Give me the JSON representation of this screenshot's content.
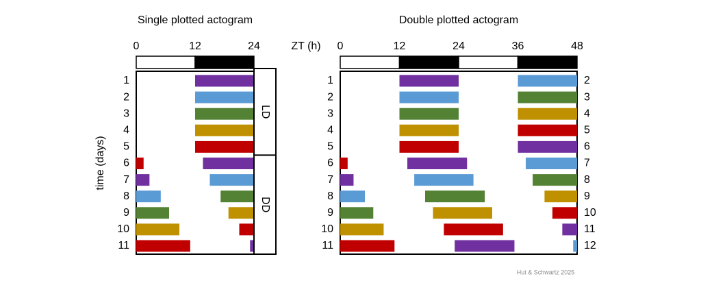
{
  "chart_data": [
    {
      "type": "actogram",
      "title": "Single plotted actogram",
      "y_label": "time (days)",
      "xlim": [
        0,
        24
      ],
      "xticks": [
        0,
        12,
        24
      ],
      "light_dark": [
        {
          "start": 0,
          "end": 12,
          "color": "#ffffff"
        },
        {
          "start": 12,
          "end": 24,
          "color": "#000000"
        }
      ],
      "categories": [
        "1",
        "2",
        "3",
        "4",
        "5",
        "6",
        "7",
        "8",
        "9",
        "10",
        "11"
      ],
      "rows": [
        {
          "bars": [
            {
              "start": 12,
              "end": 24,
              "color": "#7030a0"
            }
          ]
        },
        {
          "bars": [
            {
              "start": 12,
              "end": 24,
              "color": "#5b9bd5"
            }
          ]
        },
        {
          "bars": [
            {
              "start": 12,
              "end": 24,
              "color": "#548235"
            }
          ]
        },
        {
          "bars": [
            {
              "start": 12,
              "end": 24,
              "color": "#bf9000"
            }
          ]
        },
        {
          "bars": [
            {
              "start": 12,
              "end": 24,
              "color": "#c00000"
            }
          ]
        },
        {
          "bars": [
            {
              "start": 0,
              "end": 1.5,
              "color": "#c00000"
            },
            {
              "start": 13.6,
              "end": 24,
              "color": "#7030a0"
            }
          ]
        },
        {
          "bars": [
            {
              "start": 0,
              "end": 2.7,
              "color": "#7030a0"
            },
            {
              "start": 15,
              "end": 24,
              "color": "#5b9bd5"
            }
          ]
        },
        {
          "bars": [
            {
              "start": 0,
              "end": 5,
              "color": "#5b9bd5"
            },
            {
              "start": 17.2,
              "end": 24,
              "color": "#548235"
            }
          ]
        },
        {
          "bars": [
            {
              "start": 0,
              "end": 6.7,
              "color": "#548235"
            },
            {
              "start": 18.8,
              "end": 24,
              "color": "#bf9000"
            }
          ]
        },
        {
          "bars": [
            {
              "start": 0,
              "end": 8.8,
              "color": "#bf9000"
            },
            {
              "start": 21,
              "end": 24,
              "color": "#c00000"
            }
          ]
        },
        {
          "bars": [
            {
              "start": 0,
              "end": 11,
              "color": "#c00000"
            },
            {
              "start": 23.2,
              "end": 24,
              "color": "#7030a0"
            }
          ]
        }
      ],
      "conditions": [
        {
          "label": "LD",
          "first_day": 1,
          "last_day": 5
        },
        {
          "label": "DD",
          "first_day": 6,
          "last_day": 11
        }
      ]
    },
    {
      "type": "actogram",
      "title": "Double plotted actogram",
      "x_label": "ZT (h)",
      "xlim": [
        0,
        48
      ],
      "xticks": [
        0,
        12,
        24,
        36,
        48
      ],
      "light_dark": [
        {
          "start": 0,
          "end": 12,
          "color": "#ffffff"
        },
        {
          "start": 12,
          "end": 24,
          "color": "#000000"
        },
        {
          "start": 24,
          "end": 36,
          "color": "#ffffff"
        },
        {
          "start": 36,
          "end": 48,
          "color": "#000000"
        }
      ],
      "categories": [
        "1",
        "2",
        "3",
        "4",
        "5",
        "6",
        "7",
        "8",
        "9",
        "10",
        "11"
      ],
      "categories_right": [
        "2",
        "3",
        "4",
        "5",
        "6",
        "7",
        "8",
        "9",
        "10",
        "11",
        "12"
      ],
      "rows": [
        {
          "bars": [
            {
              "start": 12,
              "end": 24,
              "color": "#7030a0"
            },
            {
              "start": 36,
              "end": 48,
              "color": "#5b9bd5"
            }
          ]
        },
        {
          "bars": [
            {
              "start": 12,
              "end": 24,
              "color": "#5b9bd5"
            },
            {
              "start": 36,
              "end": 48,
              "color": "#548235"
            }
          ]
        },
        {
          "bars": [
            {
              "start": 12,
              "end": 24,
              "color": "#548235"
            },
            {
              "start": 36,
              "end": 48,
              "color": "#bf9000"
            }
          ]
        },
        {
          "bars": [
            {
              "start": 12,
              "end": 24,
              "color": "#bf9000"
            },
            {
              "start": 36,
              "end": 48,
              "color": "#c00000"
            }
          ]
        },
        {
          "bars": [
            {
              "start": 12,
              "end": 24,
              "color": "#c00000"
            },
            {
              "start": 36,
              "end": 48,
              "color": "#7030a0"
            }
          ]
        },
        {
          "bars": [
            {
              "start": 0,
              "end": 1.5,
              "color": "#c00000"
            },
            {
              "start": 13.6,
              "end": 25.7,
              "color": "#7030a0"
            },
            {
              "start": 37.6,
              "end": 48,
              "color": "#5b9bd5"
            }
          ]
        },
        {
          "bars": [
            {
              "start": 0,
              "end": 2.7,
              "color": "#7030a0"
            },
            {
              "start": 15,
              "end": 27,
              "color": "#5b9bd5"
            },
            {
              "start": 39,
              "end": 48,
              "color": "#548235"
            }
          ]
        },
        {
          "bars": [
            {
              "start": 0,
              "end": 5,
              "color": "#5b9bd5"
            },
            {
              "start": 17.2,
              "end": 29.3,
              "color": "#548235"
            },
            {
              "start": 41.4,
              "end": 48,
              "color": "#bf9000"
            }
          ]
        },
        {
          "bars": [
            {
              "start": 0,
              "end": 6.7,
              "color": "#548235"
            },
            {
              "start": 18.8,
              "end": 30.8,
              "color": "#bf9000"
            },
            {
              "start": 43,
              "end": 48,
              "color": "#c00000"
            }
          ]
        },
        {
          "bars": [
            {
              "start": 0,
              "end": 8.8,
              "color": "#bf9000"
            },
            {
              "start": 21,
              "end": 33,
              "color": "#c00000"
            },
            {
              "start": 45,
              "end": 48,
              "color": "#7030a0"
            }
          ]
        },
        {
          "bars": [
            {
              "start": 0,
              "end": 11,
              "color": "#c00000"
            },
            {
              "start": 23.2,
              "end": 35.3,
              "color": "#7030a0"
            },
            {
              "start": 47.2,
              "end": 48,
              "color": "#5b9bd5"
            }
          ]
        }
      ]
    }
  ],
  "credit": "Hut & Schwartz 2025"
}
